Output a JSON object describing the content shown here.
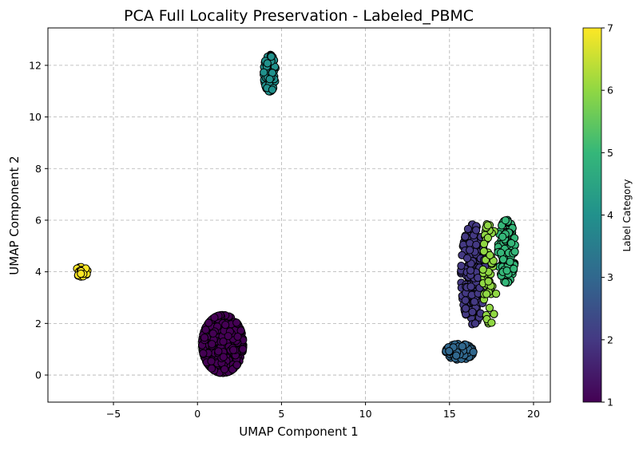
{
  "chart_data": {
    "type": "scatter",
    "title": "PCA Full Locality Preservation - Labeled_PBMC",
    "xlabel": "UMAP Component 1",
    "ylabel": "UMAP Component 2",
    "xlim": [
      -8.9,
      21.0
    ],
    "ylim": [
      -1.05,
      13.45
    ],
    "xticks": [
      -5,
      0,
      5,
      10,
      15,
      20
    ],
    "yticks": [
      0,
      2,
      4,
      6,
      8,
      10,
      12
    ],
    "grid": true,
    "colormap": "viridis",
    "colorbar": {
      "label": "Label Category",
      "range": [
        1,
        7
      ],
      "ticks": [
        1,
        2,
        3,
        4,
        5,
        6,
        7
      ]
    },
    "clusters": [
      {
        "label": 1,
        "center": [
          1.5,
          1.2
        ],
        "spread": [
          1.2,
          1.1
        ],
        "n": 420
      },
      {
        "label": 4,
        "center": [
          4.3,
          11.7
        ],
        "spread": [
          0.35,
          0.7
        ],
        "n": 110
      },
      {
        "label": 7,
        "center": [
          -6.9,
          4.0
        ],
        "spread": [
          0.35,
          0.18
        ],
        "n": 45
      },
      {
        "label": 2,
        "center": [
          16.4,
          3.9
        ],
        "spread": [
          0.7,
          1.9
        ],
        "n": 220
      },
      {
        "label": 3,
        "center": [
          15.6,
          0.9
        ],
        "spread": [
          0.8,
          0.3
        ],
        "n": 90
      },
      {
        "label": 5,
        "center": [
          18.4,
          4.8
        ],
        "spread": [
          0.5,
          1.2
        ],
        "n": 140
      },
      {
        "label": 6,
        "center": [
          17.4,
          4.0
        ],
        "spread": [
          0.4,
          2.0
        ],
        "n": 60
      }
    ]
  }
}
